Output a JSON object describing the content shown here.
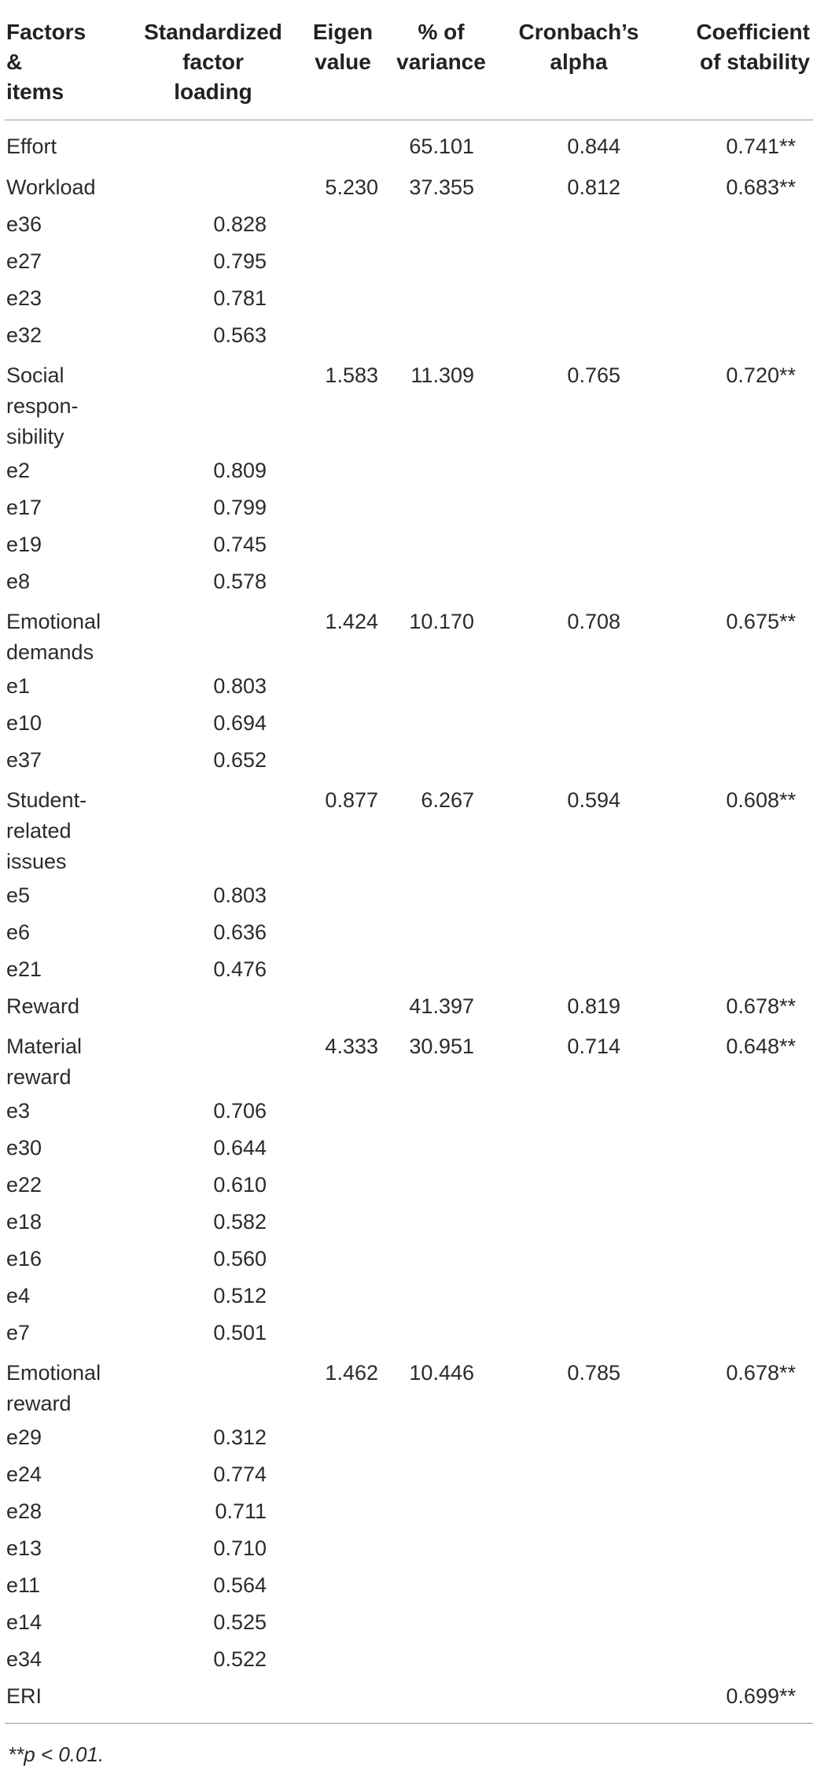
{
  "headers": {
    "factors": [
      "Factors",
      "&",
      "items"
    ],
    "loading": [
      "Standardized",
      "factor",
      "loading"
    ],
    "eigen": [
      "Eigen",
      "value"
    ],
    "variance": [
      "% of",
      "variance"
    ],
    "alpha": [
      "Cronbach’s",
      "alpha"
    ],
    "stability": [
      "Coefficient",
      "of stability"
    ]
  },
  "rows": [
    {
      "name": [
        "Effort"
      ],
      "loading": "",
      "eigen": "",
      "variance": "65.101",
      "alpha": "0.844",
      "stability": "0.741**"
    },
    {
      "name": [
        "Workload"
      ],
      "loading": "",
      "eigen": "5.230",
      "variance": "37.355",
      "alpha": "0.812",
      "stability": "0.683**"
    },
    {
      "name": [
        "e36"
      ],
      "loading": "0.828",
      "eigen": "",
      "variance": "",
      "alpha": "",
      "stability": ""
    },
    {
      "name": [
        "e27"
      ],
      "loading": "0.795",
      "eigen": "",
      "variance": "",
      "alpha": "",
      "stability": ""
    },
    {
      "name": [
        "e23"
      ],
      "loading": "0.781",
      "eigen": "",
      "variance": "",
      "alpha": "",
      "stability": ""
    },
    {
      "name": [
        "e32"
      ],
      "loading": "0.563",
      "eigen": "",
      "variance": "",
      "alpha": "",
      "stability": ""
    },
    {
      "name": [
        "Social",
        "respon-",
        "sibility"
      ],
      "loading": "",
      "eigen": "1.583",
      "variance": "11.309",
      "alpha": "0.765",
      "stability": "0.720**"
    },
    {
      "name": [
        "e2"
      ],
      "loading": "0.809",
      "eigen": "",
      "variance": "",
      "alpha": "",
      "stability": ""
    },
    {
      "name": [
        "e17"
      ],
      "loading": "0.799",
      "eigen": "",
      "variance": "",
      "alpha": "",
      "stability": ""
    },
    {
      "name": [
        "e19"
      ],
      "loading": "0.745",
      "eigen": "",
      "variance": "",
      "alpha": "",
      "stability": ""
    },
    {
      "name": [
        "e8"
      ],
      "loading": "0.578",
      "eigen": "",
      "variance": "",
      "alpha": "",
      "stability": ""
    },
    {
      "name": [
        "Emotional",
        "demands"
      ],
      "loading": "",
      "eigen": "1.424",
      "variance": "10.170",
      "alpha": "0.708",
      "stability": "0.675**"
    },
    {
      "name": [
        "e1"
      ],
      "loading": "0.803",
      "eigen": "",
      "variance": "",
      "alpha": "",
      "stability": ""
    },
    {
      "name": [
        "e10"
      ],
      "loading": "0.694",
      "eigen": "",
      "variance": "",
      "alpha": "",
      "stability": ""
    },
    {
      "name": [
        "e37"
      ],
      "loading": "0.652",
      "eigen": "",
      "variance": "",
      "alpha": "",
      "stability": ""
    },
    {
      "name": [
        "Student-",
        "related",
        "issues"
      ],
      "loading": "",
      "eigen": "0.877",
      "variance": "6.267",
      "alpha": "0.594",
      "stability": "0.608**"
    },
    {
      "name": [
        "e5"
      ],
      "loading": "0.803",
      "eigen": "",
      "variance": "",
      "alpha": "",
      "stability": ""
    },
    {
      "name": [
        "e6"
      ],
      "loading": "0.636",
      "eigen": "",
      "variance": "",
      "alpha": "",
      "stability": ""
    },
    {
      "name": [
        "e21"
      ],
      "loading": "0.476",
      "eigen": "",
      "variance": "",
      "alpha": "",
      "stability": ""
    },
    {
      "name": [
        "Reward"
      ],
      "loading": "",
      "eigen": "",
      "variance": "41.397",
      "alpha": "0.819",
      "stability": "0.678**"
    },
    {
      "name": [
        "Material",
        "reward"
      ],
      "loading": "",
      "eigen": "4.333",
      "variance": "30.951",
      "alpha": "0.714",
      "stability": "0.648**"
    },
    {
      "name": [
        "e3"
      ],
      "loading": "0.706",
      "eigen": "",
      "variance": "",
      "alpha": "",
      "stability": ""
    },
    {
      "name": [
        "e30"
      ],
      "loading": "0.644",
      "eigen": "",
      "variance": "",
      "alpha": "",
      "stability": ""
    },
    {
      "name": [
        "e22"
      ],
      "loading": "0.610",
      "eigen": "",
      "variance": "",
      "alpha": "",
      "stability": ""
    },
    {
      "name": [
        "e18"
      ],
      "loading": "0.582",
      "eigen": "",
      "variance": "",
      "alpha": "",
      "stability": ""
    },
    {
      "name": [
        "e16"
      ],
      "loading": "0.560",
      "eigen": "",
      "variance": "",
      "alpha": "",
      "stability": ""
    },
    {
      "name": [
        "e4"
      ],
      "loading": "0.512",
      "eigen": "",
      "variance": "",
      "alpha": "",
      "stability": ""
    },
    {
      "name": [
        "e7"
      ],
      "loading": "0.501",
      "eigen": "",
      "variance": "",
      "alpha": "",
      "stability": ""
    },
    {
      "name": [
        "Emotional",
        "reward"
      ],
      "loading": "",
      "eigen": "1.462",
      "variance": "10.446",
      "alpha": "0.785",
      "stability": "0.678**"
    },
    {
      "name": [
        "e29"
      ],
      "loading": "0.312",
      "eigen": "",
      "variance": "",
      "alpha": "",
      "stability": ""
    },
    {
      "name": [
        "e24"
      ],
      "loading": "0.774",
      "eigen": "",
      "variance": "",
      "alpha": "",
      "stability": ""
    },
    {
      "name": [
        "e28"
      ],
      "loading": "0.711",
      "eigen": "",
      "variance": "",
      "alpha": "",
      "stability": ""
    },
    {
      "name": [
        "e13"
      ],
      "loading": "0.710",
      "eigen": "",
      "variance": "",
      "alpha": "",
      "stability": ""
    },
    {
      "name": [
        "e11"
      ],
      "loading": "0.564",
      "eigen": "",
      "variance": "",
      "alpha": "",
      "stability": ""
    },
    {
      "name": [
        "e14"
      ],
      "loading": "0.525",
      "eigen": "",
      "variance": "",
      "alpha": "",
      "stability": ""
    },
    {
      "name": [
        "e34"
      ],
      "loading": "0.522",
      "eigen": "",
      "variance": "",
      "alpha": "",
      "stability": ""
    },
    {
      "name": [
        "ERI"
      ],
      "loading": "",
      "eigen": "",
      "variance": "",
      "alpha": "",
      "stability": "0.699**"
    }
  ],
  "footnote": "**p < 0.01."
}
